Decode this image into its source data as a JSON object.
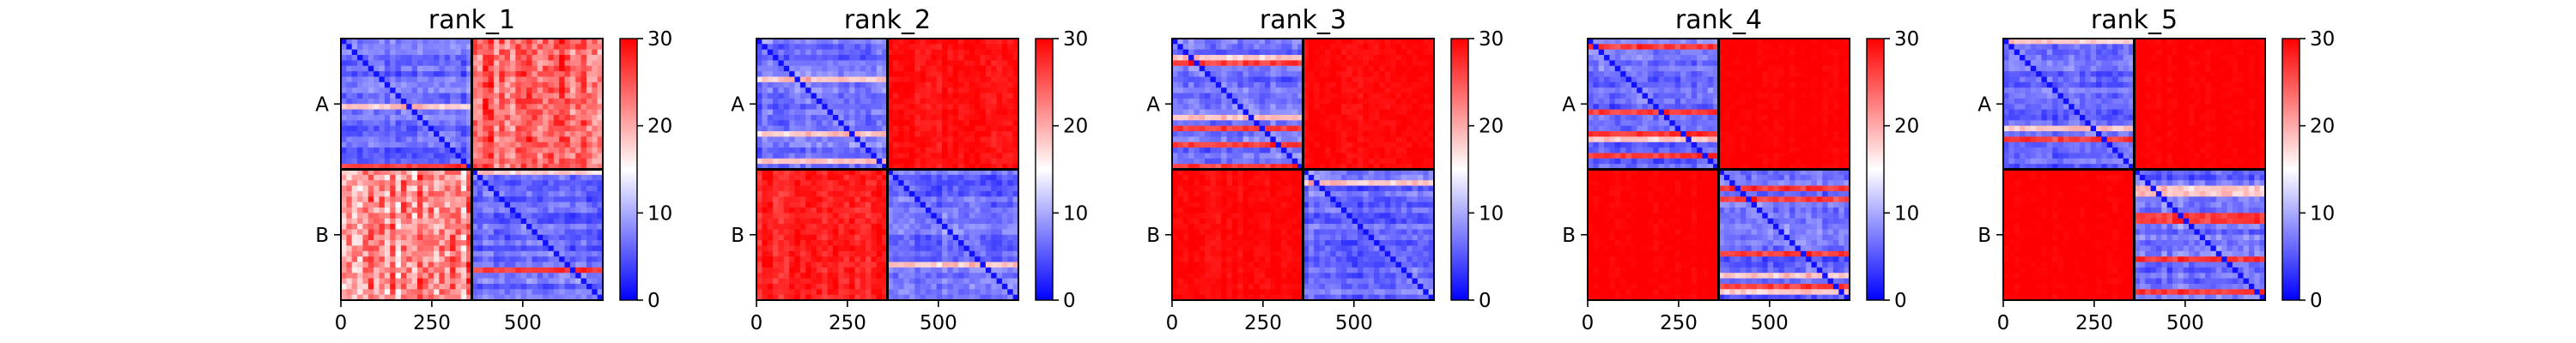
{
  "chart_data": [
    {
      "type": "heatmap",
      "title": "rank_1",
      "y_tick_labels": [
        "A",
        "B"
      ],
      "x_ticks": [
        0,
        250,
        500
      ],
      "x_range": [
        0,
        720
      ],
      "colorbar": {
        "range": [
          0,
          30
        ],
        "ticks": [
          0,
          10,
          20,
          30
        ],
        "colormap": "bwr"
      },
      "blocks": [
        {
          "row": "A",
          "col": "A",
          "mean_value": 5
        },
        {
          "row": "A",
          "col": "B",
          "mean_value": 24
        },
        {
          "row": "B",
          "col": "A",
          "mean_value": 22
        },
        {
          "row": "B",
          "col": "B",
          "mean_value": 5
        }
      ]
    },
    {
      "type": "heatmap",
      "title": "rank_2",
      "y_tick_labels": [
        "A",
        "B"
      ],
      "x_ticks": [
        0,
        250,
        500
      ],
      "x_range": [
        0,
        720
      ],
      "colorbar": {
        "range": [
          0,
          30
        ],
        "ticks": [
          0,
          10,
          20,
          30
        ],
        "colormap": "bwr"
      },
      "blocks": [
        {
          "row": "A",
          "col": "A",
          "mean_value": 5
        },
        {
          "row": "A",
          "col": "B",
          "mean_value": 29
        },
        {
          "row": "B",
          "col": "A",
          "mean_value": 28
        },
        {
          "row": "B",
          "col": "B",
          "mean_value": 5
        }
      ]
    },
    {
      "type": "heatmap",
      "title": "rank_3",
      "y_tick_labels": [
        "A",
        "B"
      ],
      "x_ticks": [
        0,
        250,
        500
      ],
      "x_range": [
        0,
        720
      ],
      "colorbar": {
        "range": [
          0,
          30
        ],
        "ticks": [
          0,
          10,
          20,
          30
        ],
        "colormap": "bwr"
      },
      "blocks": [
        {
          "row": "A",
          "col": "A",
          "mean_value": 5
        },
        {
          "row": "A",
          "col": "B",
          "mean_value": 29.5
        },
        {
          "row": "B",
          "col": "A",
          "mean_value": 29.5
        },
        {
          "row": "B",
          "col": "B",
          "mean_value": 5
        }
      ]
    },
    {
      "type": "heatmap",
      "title": "rank_4",
      "y_tick_labels": [
        "A",
        "B"
      ],
      "x_ticks": [
        0,
        250,
        500
      ],
      "x_range": [
        0,
        720
      ],
      "colorbar": {
        "range": [
          0,
          30
        ],
        "ticks": [
          0,
          10,
          20,
          30
        ],
        "colormap": "bwr"
      },
      "blocks": [
        {
          "row": "A",
          "col": "A",
          "mean_value": 5
        },
        {
          "row": "A",
          "col": "B",
          "mean_value": 30
        },
        {
          "row": "B",
          "col": "A",
          "mean_value": 30
        },
        {
          "row": "B",
          "col": "B",
          "mean_value": 5
        }
      ]
    },
    {
      "type": "heatmap",
      "title": "rank_5",
      "y_tick_labels": [
        "A",
        "B"
      ],
      "x_ticks": [
        0,
        250,
        500
      ],
      "x_range": [
        0,
        720
      ],
      "colorbar": {
        "range": [
          0,
          30
        ],
        "ticks": [
          0,
          10,
          20,
          30
        ],
        "colormap": "bwr"
      },
      "blocks": [
        {
          "row": "A",
          "col": "A",
          "mean_value": 5
        },
        {
          "row": "A",
          "col": "B",
          "mean_value": 30
        },
        {
          "row": "B",
          "col": "A",
          "mean_value": 30
        },
        {
          "row": "B",
          "col": "B",
          "mean_value": 5
        }
      ]
    }
  ]
}
